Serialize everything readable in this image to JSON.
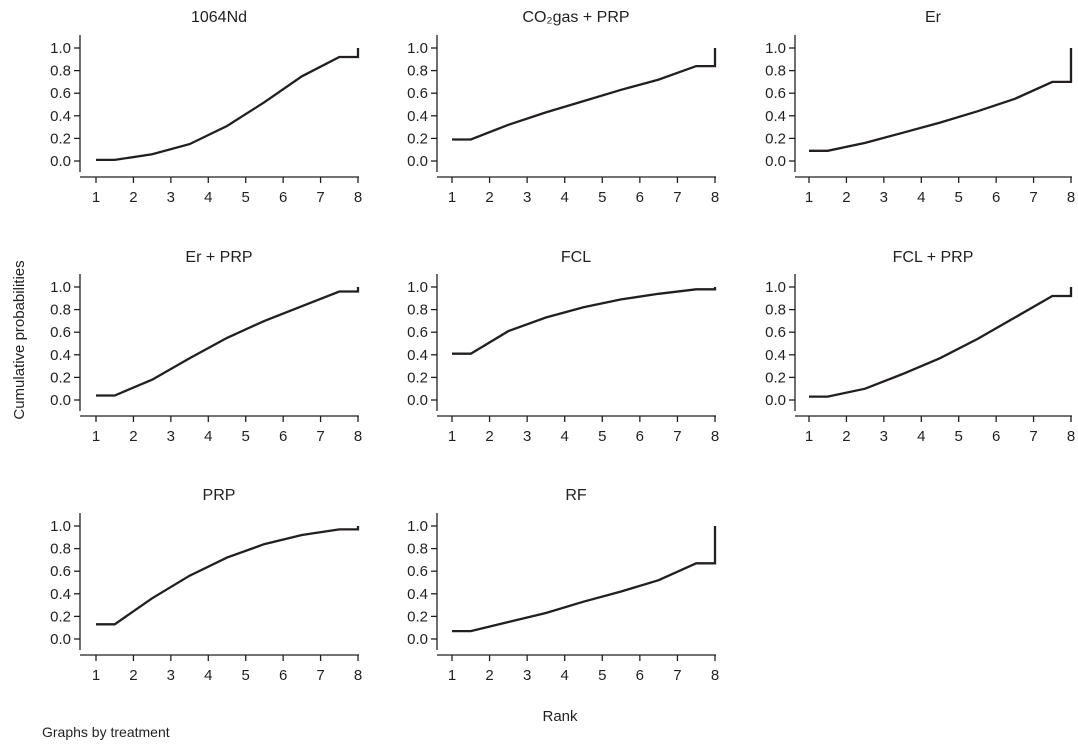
{
  "chart_data": {
    "type": "line",
    "ylabel": "Cumulative probabilities",
    "xlabel": "Rank",
    "caption": "Graphs by treatment",
    "xlim": [
      1,
      8
    ],
    "ylim": [
      0,
      1
    ],
    "grid": false,
    "line_color": "#231f20",
    "x_ticks": [
      "1",
      "2",
      "3",
      "4",
      "5",
      "6",
      "7",
      "8"
    ],
    "y_ticks": [
      "0.0",
      "0.2",
      "0.4",
      "0.6",
      "0.8",
      "1.0"
    ],
    "x": [
      1,
      1.5,
      2.5,
      3.5,
      4.5,
      5.5,
      6.5,
      7.5,
      8,
      8
    ],
    "panels": [
      {
        "title": "1064Nd",
        "y": [
          0.01,
          0.01,
          0.06,
          0.15,
          0.31,
          0.52,
          0.75,
          0.92,
          0.92,
          1.0
        ]
      },
      {
        "title": "CO₂gas + PRP",
        "y": [
          0.19,
          0.19,
          0.32,
          0.43,
          0.53,
          0.63,
          0.72,
          0.84,
          0.84,
          1.0
        ]
      },
      {
        "title": "Er",
        "y": [
          0.09,
          0.09,
          0.16,
          0.25,
          0.34,
          0.44,
          0.55,
          0.7,
          0.7,
          1.0
        ]
      },
      {
        "title": "Er + PRP",
        "y": [
          0.04,
          0.04,
          0.18,
          0.37,
          0.55,
          0.7,
          0.83,
          0.96,
          0.96,
          1.0
        ]
      },
      {
        "title": "FCL",
        "y": [
          0.41,
          0.41,
          0.61,
          0.73,
          0.82,
          0.89,
          0.94,
          0.98,
          0.98,
          1.0
        ]
      },
      {
        "title": "FCL + PRP",
        "y": [
          0.03,
          0.03,
          0.1,
          0.23,
          0.37,
          0.54,
          0.73,
          0.92,
          0.92,
          1.0
        ]
      },
      {
        "title": "PRP",
        "y": [
          0.13,
          0.13,
          0.36,
          0.56,
          0.72,
          0.84,
          0.92,
          0.97,
          0.97,
          1.0
        ]
      },
      {
        "title": "RF",
        "y": [
          0.07,
          0.07,
          0.15,
          0.23,
          0.33,
          0.42,
          0.52,
          0.67,
          0.67,
          1.0
        ]
      }
    ]
  }
}
